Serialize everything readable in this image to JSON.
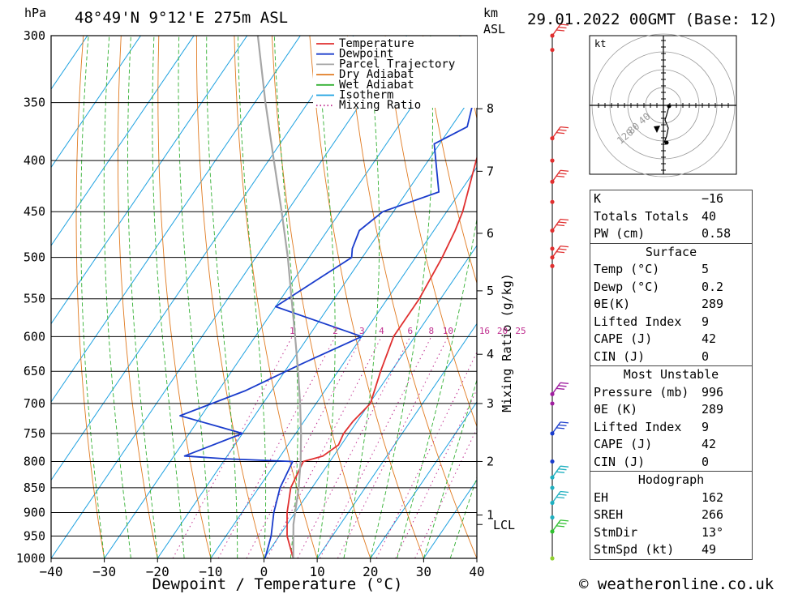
{
  "header": {
    "location": "48°49'N  9°12'E  275m  ASL",
    "run": "29.01.2022  00GMT  (Base: 12)",
    "left_unit": "hPa",
    "right_unit_top": "km",
    "right_unit_bottom": "ASL"
  },
  "chart_data": {
    "type": "line",
    "title": "48°49'N  9°12'E  275m  ASL",
    "xlabel": "Dewpoint / Temperature (°C)",
    "ylabel": "hPa",
    "xlim": [
      -40,
      40
    ],
    "ylim": [
      1000,
      300
    ],
    "x_ticks": [
      "−40",
      "−30",
      "−20",
      "−10",
      "0",
      "10",
      "20",
      "30",
      "40"
    ],
    "pressure_ticks": [
      300,
      350,
      400,
      450,
      500,
      550,
      600,
      650,
      700,
      750,
      800,
      850,
      900,
      950,
      1000
    ],
    "km_ticks": [
      {
        "km": "1",
        "p": 905
      },
      {
        "km": "2",
        "p": 800
      },
      {
        "km": "3",
        "p": 700
      },
      {
        "km": "4",
        "p": 625
      },
      {
        "km": "5",
        "p": 540
      },
      {
        "km": "6",
        "p": 473
      },
      {
        "km": "7",
        "p": 410
      },
      {
        "km": "8",
        "p": 355
      }
    ],
    "lcl_label": "LCL",
    "lcl_pressure": 925,
    "mixing_ratio_label": "Mixing Ratio (g/kg)",
    "mixing_ratio_values": [
      "1",
      "2",
      "3",
      "4",
      "6",
      "8",
      "10",
      "16",
      "20",
      "25"
    ],
    "mixing_ratio_numbers": [
      1,
      2,
      3,
      4,
      6,
      8,
      10,
      16,
      20,
      25
    ],
    "legend": [
      "Temperature",
      "Dewpoint",
      "Parcel Trajectory",
      "Dry Adiabat",
      "Wet Adiabat",
      "Isotherm",
      "Mixing Ratio"
    ],
    "series": [
      {
        "name": "Temperature",
        "color": "#e03030",
        "points": [
          [
            1000,
            5.5
          ],
          [
            950,
            1.5
          ],
          [
            900,
            -1.5
          ],
          [
            850,
            -4
          ],
          [
            800,
            -5
          ],
          [
            790,
            -2
          ],
          [
            770,
            -0.5
          ],
          [
            750,
            -1
          ],
          [
            730,
            -0.8
          ],
          [
            700,
            0.2
          ],
          [
            650,
            -2
          ],
          [
            600,
            -4
          ],
          [
            550,
            -4
          ],
          [
            500,
            -5
          ],
          [
            470,
            -6
          ],
          [
            450,
            -7
          ],
          [
            400,
            -11
          ],
          [
            350,
            -15
          ],
          [
            330,
            -16
          ],
          [
            310,
            -15.5
          ],
          [
            300,
            -14
          ]
        ]
      },
      {
        "name": "Dewpoint",
        "color": "#1a3ccc",
        "points": [
          [
            1000,
            0.2
          ],
          [
            950,
            -1.5
          ],
          [
            900,
            -4
          ],
          [
            850,
            -6
          ],
          [
            800,
            -7
          ],
          [
            795,
            -20
          ],
          [
            790,
            -28
          ],
          [
            750,
            -20
          ],
          [
            720,
            -34
          ],
          [
            680,
            -25
          ],
          [
            640,
            -18
          ],
          [
            600,
            -10
          ],
          [
            560,
            -30
          ],
          [
            500,
            -22
          ],
          [
            490,
            -23
          ],
          [
            470,
            -24
          ],
          [
            450,
            -22
          ],
          [
            430,
            -14
          ],
          [
            385,
            -21
          ],
          [
            370,
            -17
          ],
          [
            350,
            -19
          ],
          [
            340,
            -25
          ],
          [
            320,
            -24
          ],
          [
            300,
            -26
          ]
        ]
      },
      {
        "name": "Parcel Trajectory",
        "color": "#a6a6a6",
        "points": [
          [
            1000,
            5.5
          ],
          [
            925,
            1.2
          ],
          [
            900,
            0
          ],
          [
            850,
            -2.5
          ],
          [
            800,
            -5.5
          ],
          [
            750,
            -9
          ],
          [
            700,
            -13
          ],
          [
            650,
            -17.5
          ],
          [
            600,
            -22.5
          ],
          [
            550,
            -28
          ],
          [
            500,
            -34
          ],
          [
            450,
            -41
          ],
          [
            400,
            -49
          ],
          [
            350,
            -58
          ],
          [
            300,
            -68
          ]
        ]
      }
    ],
    "wind_profile": {
      "height_axis_label": "km ASL",
      "levels_hpa": [
        300,
        310,
        380,
        400,
        420,
        440,
        470,
        490,
        500,
        510,
        685,
        700,
        750,
        800,
        830,
        850,
        880,
        910,
        940,
        1000
      ],
      "colors": [
        "#e03030",
        "#e03030",
        "#e03030",
        "#e03030",
        "#e03030",
        "#e03030",
        "#e03030",
        "#e03030",
        "#e03030",
        "#e03030",
        "#a020a0",
        "#a020a0",
        "#1a3ccc",
        "#1a3ccc",
        "#20b0c0",
        "#20b0c0",
        "#20b0c0",
        "#20b0c0",
        "#30c030",
        "#90d030"
      ]
    },
    "hodograph": {
      "unit_label": "kt",
      "ring_labels": [
        "40",
        "80",
        "120"
      ],
      "ring_values": [
        20,
        40,
        60,
        80
      ]
    }
  },
  "indices": [
    {
      "label": "K",
      "value": "−16"
    },
    {
      "label": "Totals Totals",
      "value": "40"
    },
    {
      "label": "PW (cm)",
      "value": "0.58"
    }
  ],
  "surface": {
    "title": "Surface",
    "rows": [
      {
        "label": "Temp (°C)",
        "value": "5"
      },
      {
        "label": "Dewp (°C)",
        "value": "0.2"
      },
      {
        "label": "θE(K)",
        "value": "289"
      },
      {
        "label": "Lifted Index",
        "value": "9"
      },
      {
        "label": "CAPE (J)",
        "value": "42"
      },
      {
        "label": "CIN (J)",
        "value": "0"
      }
    ]
  },
  "most_unstable": {
    "title": "Most Unstable",
    "rows": [
      {
        "label": "Pressure (mb)",
        "value": "996"
      },
      {
        "label": "θE (K)",
        "value": "289"
      },
      {
        "label": "Lifted Index",
        "value": "9"
      },
      {
        "label": "CAPE (J)",
        "value": "42"
      },
      {
        "label": "CIN (J)",
        "value": "0"
      }
    ]
  },
  "hodograph_params": {
    "title": "Hodograph",
    "rows": [
      {
        "label": "EH",
        "value": "162"
      },
      {
        "label": "SREH",
        "value": "266"
      },
      {
        "label": "StmDir",
        "value": "13°"
      },
      {
        "label": "StmSpd (kt)",
        "value": "49"
      }
    ]
  },
  "footer": {
    "copyright": "© weatheronline.co.uk"
  }
}
